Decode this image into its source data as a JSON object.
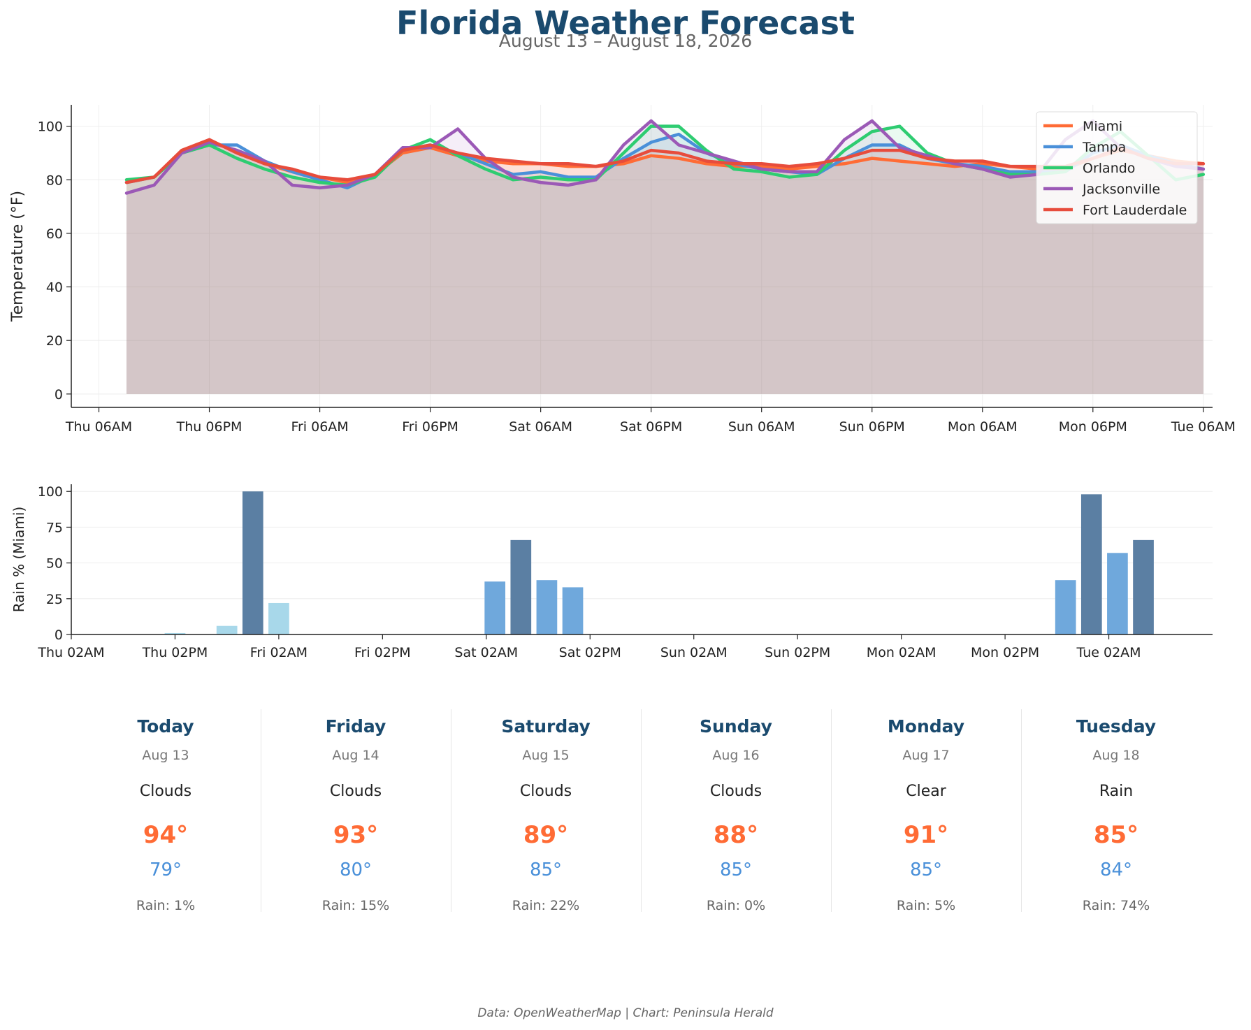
{
  "title": "Florida Weather Forecast",
  "subtitle": "August 13 – August 18, 2026",
  "footer": "Data: OpenWeatherMap | Chart: Peninsula Herald",
  "colors": {
    "title": "#1a4a6e",
    "high": "#ff6b35",
    "low": "#4a90d9"
  },
  "chart_data": [
    {
      "type": "line",
      "ylabel": "Temperature (°F)",
      "ylim": [
        -5,
        108
      ],
      "yticks": [
        0,
        20,
        40,
        60,
        80,
        100
      ],
      "xlim": [
        -3,
        121
      ],
      "xticks": [
        {
          "h": 0,
          "label": "Thu 06AM"
        },
        {
          "h": 12,
          "label": "Thu 06PM"
        },
        {
          "h": 24,
          "label": "Fri 06AM"
        },
        {
          "h": 36,
          "label": "Fri 06PM"
        },
        {
          "h": 48,
          "label": "Sat 06AM"
        },
        {
          "h": 60,
          "label": "Sat 06PM"
        },
        {
          "h": 72,
          "label": "Sun 06AM"
        },
        {
          "h": 84,
          "label": "Sun 06PM"
        },
        {
          "h": 96,
          "label": "Mon 06AM"
        },
        {
          "h": 108,
          "label": "Mon 06PM"
        },
        {
          "h": 120,
          "label": "Tue 06AM"
        }
      ],
      "grid": true,
      "legend": "top-right",
      "x_hours": [
        3,
        6,
        9,
        12,
        15,
        18,
        21,
        24,
        27,
        30,
        33,
        36,
        39,
        42,
        45,
        48,
        51,
        54,
        57,
        60,
        63,
        66,
        69,
        72,
        75,
        78,
        81,
        84,
        87,
        90,
        93,
        96,
        99,
        102,
        105,
        108,
        111,
        114,
        117,
        120
      ],
      "series": [
        {
          "name": "Miami",
          "color": "#ff6b35",
          "values": [
            79,
            81,
            90,
            94,
            91,
            86,
            83,
            81,
            79,
            82,
            90,
            92,
            89,
            87,
            86,
            86,
            85,
            85,
            86,
            89,
            88,
            86,
            85,
            85,
            84,
            85,
            86,
            88,
            87,
            86,
            85,
            86,
            85,
            84,
            84,
            88,
            91,
            89,
            87,
            86
          ]
        },
        {
          "name": "Tampa",
          "color": "#4a90d9",
          "values": [
            79,
            81,
            90,
            93,
            93,
            87,
            83,
            80,
            77,
            82,
            91,
            93,
            90,
            86,
            82,
            83,
            81,
            81,
            88,
            94,
            97,
            90,
            86,
            84,
            83,
            82,
            88,
            93,
            93,
            88,
            86,
            85,
            83,
            83,
            83,
            90,
            93,
            89,
            86,
            84
          ]
        },
        {
          "name": "Orlando",
          "color": "#2ecc71",
          "values": [
            80,
            81,
            90,
            93,
            88,
            84,
            81,
            79,
            78,
            81,
            91,
            95,
            89,
            84,
            80,
            81,
            80,
            80,
            90,
            100,
            100,
            91,
            84,
            83,
            81,
            82,
            91,
            98,
            100,
            90,
            86,
            84,
            82,
            82,
            83,
            92,
            98,
            89,
            80,
            82
          ]
        },
        {
          "name": "Jacksonville",
          "color": "#9b59b6",
          "values": [
            75,
            78,
            90,
            94,
            91,
            87,
            78,
            77,
            78,
            82,
            92,
            92,
            99,
            88,
            81,
            79,
            78,
            80,
            93,
            102,
            93,
            90,
            87,
            84,
            83,
            83,
            95,
            102,
            92,
            89,
            86,
            84,
            81,
            82,
            95,
            102,
            92,
            88,
            85,
            84
          ]
        },
        {
          "name": "Fort Lauderdale",
          "color": "#e74c3c",
          "values": [
            79,
            81,
            91,
            95,
            90,
            86,
            84,
            81,
            80,
            82,
            91,
            93,
            90,
            88,
            87,
            86,
            86,
            85,
            87,
            91,
            90,
            87,
            86,
            86,
            85,
            86,
            88,
            91,
            91,
            88,
            87,
            87,
            85,
            85,
            85,
            88,
            92,
            88,
            86,
            86
          ]
        }
      ]
    },
    {
      "type": "bar",
      "ylabel": "Rain % (Miami)",
      "ylim": [
        0,
        105
      ],
      "yticks": [
        0,
        25,
        50,
        75,
        100
      ],
      "xlim": [
        0,
        132
      ],
      "xticks": [
        {
          "h": 0,
          "label": "Thu 02AM"
        },
        {
          "h": 12,
          "label": "Thu 02PM"
        },
        {
          "h": 24,
          "label": "Fri 02AM"
        },
        {
          "h": 36,
          "label": "Fri 02PM"
        },
        {
          "h": 48,
          "label": "Sat 02AM"
        },
        {
          "h": 60,
          "label": "Sat 02PM"
        },
        {
          "h": 72,
          "label": "Sun 02AM"
        },
        {
          "h": 84,
          "label": "Sun 02PM"
        },
        {
          "h": 96,
          "label": "Mon 02AM"
        },
        {
          "h": 108,
          "label": "Mon 02PM"
        },
        {
          "h": 120,
          "label": "Tue 02AM"
        }
      ],
      "grid": true,
      "bars": [
        {
          "h": 12,
          "value": 1,
          "color": "#a8d8ea"
        },
        {
          "h": 18,
          "value": 6,
          "color": "#a8d8ea"
        },
        {
          "h": 21,
          "value": 100,
          "color": "#5b7fa3"
        },
        {
          "h": 24,
          "value": 22,
          "color": "#a8d8ea"
        },
        {
          "h": 49,
          "value": 37,
          "color": "#6fa8dc"
        },
        {
          "h": 52,
          "value": 66,
          "color": "#5b7fa3"
        },
        {
          "h": 55,
          "value": 38,
          "color": "#6fa8dc"
        },
        {
          "h": 58,
          "value": 33,
          "color": "#6fa8dc"
        },
        {
          "h": 115,
          "value": 38,
          "color": "#6fa8dc"
        },
        {
          "h": 118,
          "value": 98,
          "color": "#5b7fa3"
        },
        {
          "h": 121,
          "value": 57,
          "color": "#6fa8dc"
        },
        {
          "h": 124,
          "value": 66,
          "color": "#5b7fa3"
        }
      ]
    }
  ],
  "days": [
    {
      "name": "Today",
      "date": "Aug 13",
      "condition": "Clouds",
      "high": "94°",
      "low": "79°",
      "rain": "Rain: 1%"
    },
    {
      "name": "Friday",
      "date": "Aug 14",
      "condition": "Clouds",
      "high": "93°",
      "low": "80°",
      "rain": "Rain: 15%"
    },
    {
      "name": "Saturday",
      "date": "Aug 15",
      "condition": "Clouds",
      "high": "89°",
      "low": "85°",
      "rain": "Rain: 22%"
    },
    {
      "name": "Sunday",
      "date": "Aug 16",
      "condition": "Clouds",
      "high": "88°",
      "low": "85°",
      "rain": "Rain: 0%"
    },
    {
      "name": "Monday",
      "date": "Aug 17",
      "condition": "Clear",
      "high": "91°",
      "low": "85°",
      "rain": "Rain: 5%"
    },
    {
      "name": "Tuesday",
      "date": "Aug 18",
      "condition": "Rain",
      "high": "85°",
      "low": "84°",
      "rain": "Rain: 74%"
    }
  ]
}
